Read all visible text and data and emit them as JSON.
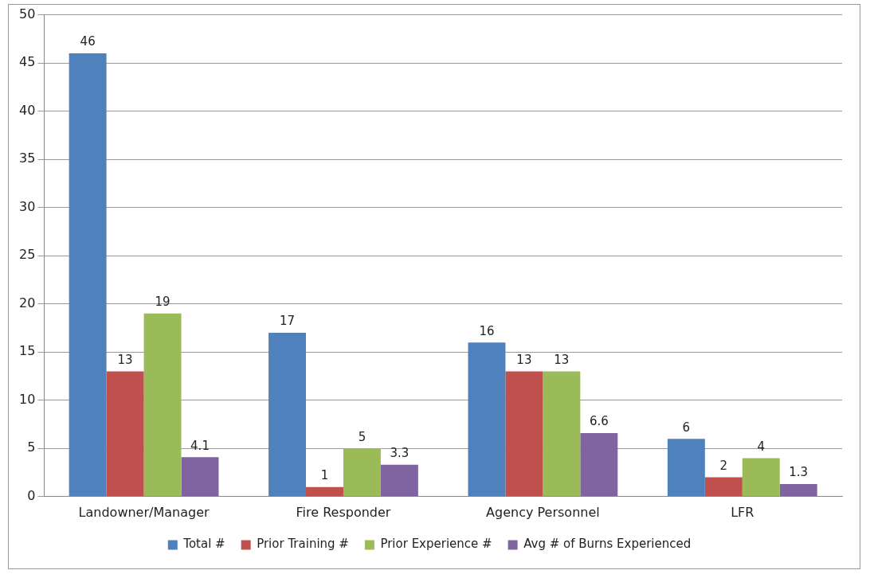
{
  "chart_data": {
    "type": "bar",
    "categories": [
      "Landowner/Manager",
      "Fire Responder",
      "Agency Personnel",
      "LFR"
    ],
    "series": [
      {
        "name": "Total #",
        "color": "#4f81bd",
        "values": [
          46,
          17,
          16,
          6
        ]
      },
      {
        "name": "Prior Training #",
        "color": "#c0504d",
        "values": [
          13,
          1,
          13,
          2
        ]
      },
      {
        "name": "Prior Experience #",
        "color": "#9bbb59",
        "values": [
          19,
          5,
          13,
          4
        ]
      },
      {
        "name": "Avg # of Burns Experienced",
        "color": "#8064a2",
        "values": [
          4.1,
          3.3,
          6.6,
          1.3
        ]
      }
    ],
    "ylim": [
      0,
      50
    ],
    "yticks": [
      0,
      5,
      10,
      15,
      20,
      25,
      30,
      35,
      40,
      45,
      50
    ],
    "grid": "y",
    "legend": "bottom",
    "data_labels": true
  }
}
